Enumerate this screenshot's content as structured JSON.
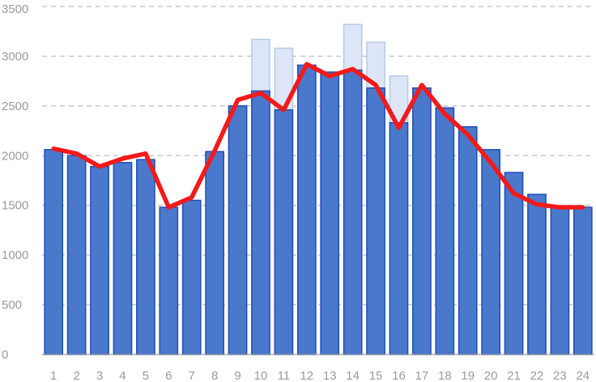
{
  "chart_data": {
    "type": "bar",
    "title": "",
    "xlabel": "",
    "ylabel": "",
    "categories": [
      "1",
      "2",
      "3",
      "4",
      "5",
      "6",
      "7",
      "8",
      "9",
      "10",
      "11",
      "12",
      "13",
      "14",
      "15",
      "16",
      "17",
      "18",
      "19",
      "20",
      "21",
      "22",
      "23",
      "24"
    ],
    "ylim": [
      0,
      3500
    ],
    "yticks": [
      0,
      500,
      1000,
      1500,
      2000,
      2500,
      3000,
      3500
    ],
    "grid": true,
    "legend": "none",
    "series": [
      {
        "type": "bar",
        "role": "background",
        "color": "#dce6f7",
        "stroke": "#b7c8ea",
        "values": [
          2060,
          2000,
          1890,
          1930,
          1960,
          1480,
          1550,
          2040,
          2500,
          3170,
          3080,
          2910,
          2840,
          3320,
          3140,
          2800,
          2680,
          2480,
          2290,
          2060,
          1830,
          1610,
          1490,
          1480
        ]
      },
      {
        "type": "bar",
        "role": "foreground",
        "color": "#4a79cc",
        "stroke": "#1f4eb5",
        "values": [
          2060,
          2000,
          1890,
          1930,
          1960,
          1480,
          1550,
          2040,
          2500,
          2650,
          2460,
          2910,
          2840,
          2860,
          2680,
          2330,
          2680,
          2480,
          2290,
          2060,
          1830,
          1610,
          1490,
          1480
        ]
      },
      {
        "type": "line",
        "color": "#f21a1a",
        "values": [
          2070,
          2020,
          1890,
          1970,
          2020,
          1480,
          1580,
          2050,
          2560,
          2630,
          2460,
          2920,
          2800,
          2870,
          2710,
          2280,
          2710,
          2420,
          2210,
          1930,
          1620,
          1510,
          1480,
          1480
        ]
      }
    ]
  }
}
